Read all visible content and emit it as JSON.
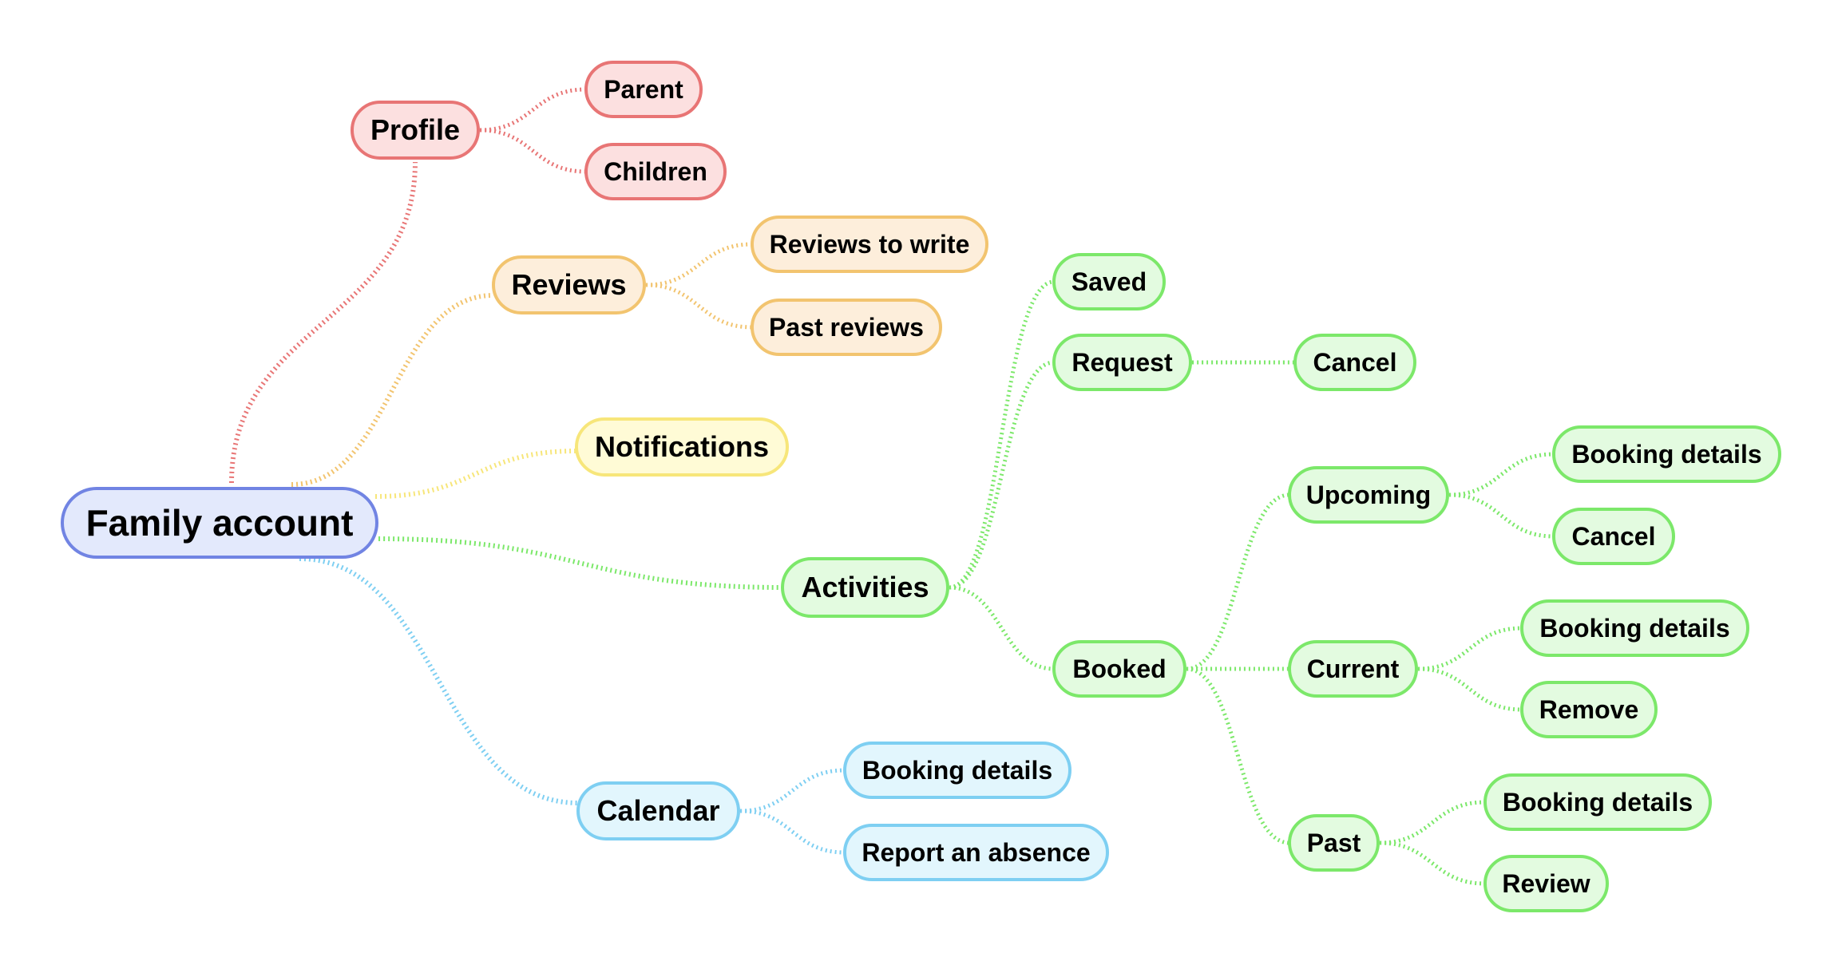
{
  "colors": {
    "root": {
      "fill": "#e3e9fc",
      "stroke": "#7184e3"
    },
    "profile": {
      "fill": "#fce0e0",
      "stroke": "#e87575"
    },
    "reviews": {
      "fill": "#fdeedb",
      "stroke": "#f2c46f"
    },
    "notifications": {
      "fill": "#fffbd6",
      "stroke": "#f7e67a"
    },
    "activities": {
      "fill": "#e3fbe0",
      "stroke": "#7ce86a"
    },
    "calendar": {
      "fill": "#e2f6fd",
      "stroke": "#7ecff2"
    }
  },
  "root": {
    "label": "Family account"
  },
  "branches": {
    "profile": {
      "label": "Profile",
      "children": [
        "Parent",
        "Children"
      ]
    },
    "reviews": {
      "label": "Reviews",
      "children": [
        "Reviews to write",
        "Past reviews"
      ]
    },
    "notifications": {
      "label": "Notifications",
      "children": []
    },
    "activities": {
      "label": "Activities",
      "saved": {
        "label": "Saved"
      },
      "request": {
        "label": "Request",
        "children": [
          "Cancel"
        ]
      },
      "booked": {
        "label": "Booked",
        "upcoming": {
          "label": "Upcoming",
          "children": [
            "Booking details",
            "Cancel"
          ]
        },
        "current": {
          "label": "Current",
          "children": [
            "Booking details",
            "Remove"
          ]
        },
        "past": {
          "label": "Past",
          "children": [
            "Booking details",
            "Review"
          ]
        }
      }
    },
    "calendar": {
      "label": "Calendar",
      "children": [
        "Booking details",
        "Report an absence"
      ]
    }
  }
}
